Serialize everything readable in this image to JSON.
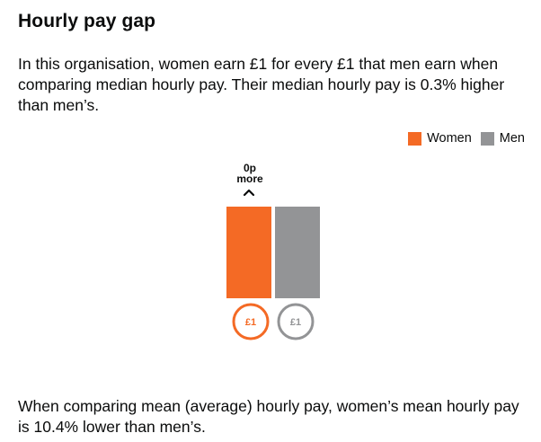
{
  "title": "Hourly pay gap",
  "intro": "In this organisation, women earn £1 for every £1 that men earn when comparing median hourly pay. Their median hourly pay is 0.3% higher than men’s.",
  "outro": "When comparing mean (average) hourly pay, women’s mean hourly pay is 10.4% lower than men’s.",
  "legend": [
    {
      "label": "Women",
      "color": "#f46a25"
    },
    {
      "label": "Men",
      "color": "#939496"
    }
  ],
  "chart_data": {
    "type": "bar",
    "categories": [
      "Women",
      "Men"
    ],
    "values": [
      1,
      1
    ],
    "value_labels": [
      "£1",
      "£1"
    ],
    "colors": [
      "#f46a25",
      "#939496"
    ],
    "difference_label": [
      "0p",
      "more"
    ],
    "difference_arrow": "up",
    "ylim": [
      0,
      1
    ]
  }
}
